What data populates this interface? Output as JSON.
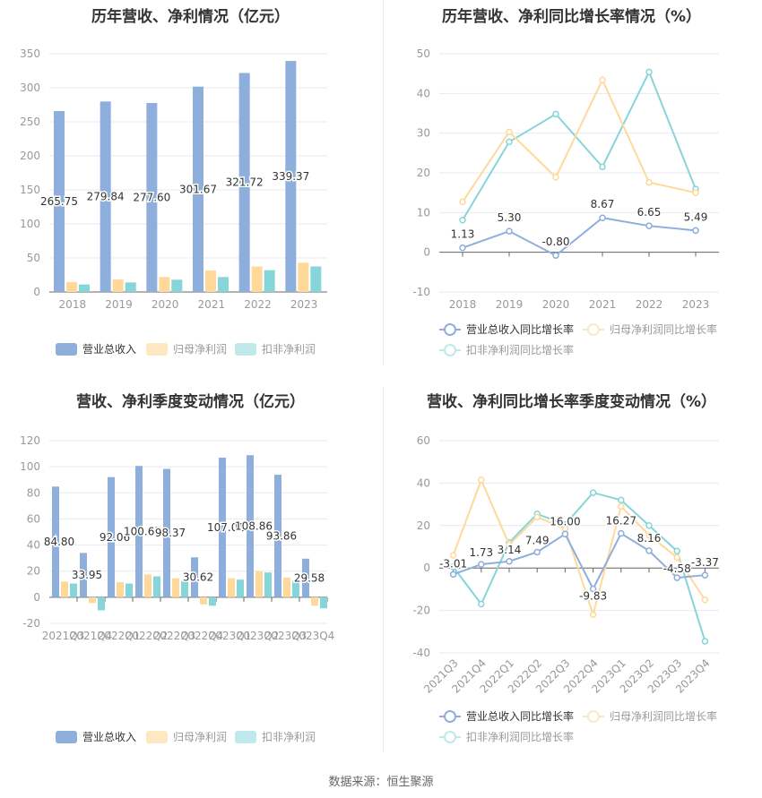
{
  "colors": {
    "revenue": "#8eaedb",
    "parent_np": "#ffd99a",
    "deducted_np": "#86d5d9",
    "revenue_light": "#8eaedb",
    "parent_light": "#ffe7c2",
    "deducted_light": "#bfe9eb",
    "grid": "#e6e9f2",
    "axis": "#666",
    "tick": "#999"
  },
  "footer": {
    "source": "数据来源：恒生聚源"
  },
  "chart_data": [
    {
      "type": "bar",
      "title": "历年营收、净利情况（亿元）",
      "categories": [
        "2018",
        "2019",
        "2020",
        "2021",
        "2022",
        "2023"
      ],
      "series": [
        {
          "name": "营业总收入",
          "values": [
            265.75,
            279.84,
            277.6,
            301.67,
            321.72,
            339.37
          ]
        },
        {
          "name": "归母净利润",
          "values": [
            14.5,
            18.5,
            22.0,
            31.5,
            37.5,
            43.0
          ]
        },
        {
          "name": "扣非净利润",
          "values": [
            11.0,
            14.0,
            18.0,
            22.0,
            32.0,
            37.5
          ]
        }
      ],
      "yticks": [
        0,
        50,
        100,
        150,
        200,
        250,
        300,
        350
      ],
      "ylim": [
        0,
        350
      ],
      "data_labels": [
        "265.75",
        "279.84",
        "277.60",
        "301.67",
        "321.72",
        "339.37"
      ],
      "legend": [
        "营业总收入",
        "归母净利润",
        "扣非净利润"
      ],
      "legend_position": "bottom",
      "grid": true
    },
    {
      "type": "line",
      "title": "历年营收、净利同比增长率情况（%）",
      "categories": [
        "2018",
        "2019",
        "2020",
        "2021",
        "2022",
        "2023"
      ],
      "series": [
        {
          "name": "营业总收入同比增长率",
          "values": [
            1.13,
            5.3,
            -0.8,
            8.67,
            6.65,
            5.49
          ]
        },
        {
          "name": "归母净利润同比增长率",
          "values": [
            12.7,
            30.3,
            18.9,
            43.4,
            17.6,
            15.0
          ]
        },
        {
          "name": "扣非净利润同比增长率",
          "values": [
            8.1,
            27.8,
            34.8,
            21.5,
            45.4,
            15.9
          ]
        }
      ],
      "yticks": [
        -10,
        0,
        10,
        20,
        30,
        40,
        50
      ],
      "ylim": [
        -10,
        50
      ],
      "data_labels": [
        "1.13",
        "5.30",
        "-0.80",
        "8.67",
        "6.65",
        "5.49"
      ],
      "legend": [
        "营业总收入同比增长率",
        "归母净利润同比增长率",
        "扣非净利润同比增长率"
      ],
      "legend_position": "bottom",
      "grid": true
    },
    {
      "type": "bar",
      "title": "营收、净利季度变动情况（亿元）",
      "categories": [
        "2021Q3",
        "2021Q4",
        "2022Q1",
        "2022Q2",
        "2022Q3",
        "2022Q4",
        "2023Q1",
        "2023Q2",
        "2023Q3",
        "2023Q4"
      ],
      "series": [
        {
          "name": "营业总收入",
          "values": [
            84.8,
            33.95,
            92.06,
            100.65,
            98.37,
            30.62,
            107.01,
            108.86,
            93.86,
            29.58
          ]
        },
        {
          "name": "归母净利润",
          "values": [
            12.0,
            -4.5,
            11.5,
            17.5,
            14.5,
            -5.5,
            14.5,
            20.0,
            15.0,
            -6.5
          ]
        },
        {
          "name": "扣非净利润",
          "values": [
            10.5,
            -10.0,
            10.5,
            16.0,
            12.5,
            -6.5,
            13.5,
            19.0,
            12.5,
            -8.5
          ]
        }
      ],
      "yticks": [
        -20,
        0,
        20,
        40,
        60,
        80,
        100,
        120
      ],
      "ylim": [
        -20,
        120
      ],
      "data_labels": [
        "84.80",
        "33.95",
        "92.06",
        "100.65",
        "98.37",
        "30.62",
        "107.01",
        "108.86",
        "93.86",
        "29.58"
      ],
      "legend": [
        "营业总收入",
        "归母净利润",
        "扣非净利润"
      ],
      "legend_position": "bottom",
      "grid": true
    },
    {
      "type": "line",
      "title": "营收、净利同比增长率季度变动情况（%）",
      "categories": [
        "2021Q3",
        "2021Q4",
        "2022Q1",
        "2022Q2",
        "2022Q3",
        "2022Q4",
        "2023Q1",
        "2023Q2",
        "2023Q3",
        "2023Q4"
      ],
      "series": [
        {
          "name": "营业总收入同比增长率",
          "values": [
            -3.01,
            1.73,
            3.14,
            7.49,
            16.0,
            -9.83,
            16.27,
            8.16,
            -4.58,
            -3.37
          ]
        },
        {
          "name": "归母净利润同比增长率",
          "values": [
            6.0,
            41.5,
            11.0,
            24.0,
            18.5,
            -22.0,
            29.0,
            15.5,
            5.0,
            -15.0
          ]
        },
        {
          "name": "扣非净利润同比增长率",
          "values": [
            0.5,
            -17.0,
            12.0,
            25.5,
            20.5,
            35.5,
            32.0,
            20.0,
            8.0,
            -34.5
          ]
        }
      ],
      "yticks": [
        -40,
        -20,
        0,
        20,
        40,
        60
      ],
      "ylim": [
        -40,
        60
      ],
      "data_labels": [
        "-3.01",
        "1.73",
        "3.14",
        "7.49",
        "16.00",
        "-9.83",
        "16.27",
        "8.16",
        "-4.58",
        "-3.37"
      ],
      "legend": [
        "营业总收入同比增长率",
        "归母净利润同比增长率",
        "扣非净利润同比增长率"
      ],
      "legend_position": "bottom",
      "grid": true
    }
  ]
}
